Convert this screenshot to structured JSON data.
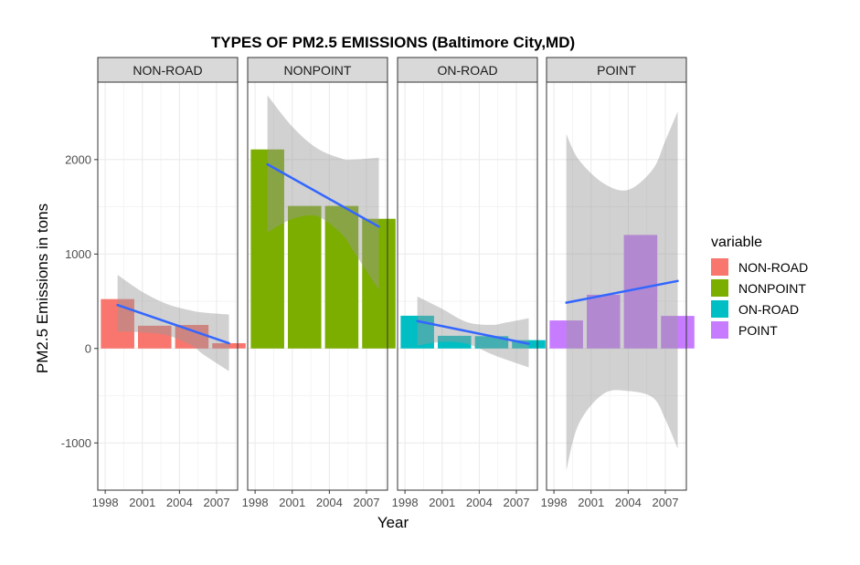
{
  "chart_data": {
    "type": "bar",
    "title": "TYPES OF PM2.5 EMISSIONS (Baltimore City,MD)",
    "xlabel": "Year",
    "ylabel": "PM2.5 Emissions in tons",
    "x_ticks": [
      1998,
      2001,
      2004,
      2007
    ],
    "y_ticks": [
      -1000,
      0,
      1000,
      2000
    ],
    "xlim": [
      1997.4,
      2008.7
    ],
    "ylim": [
      -1500,
      2820
    ],
    "grid": true,
    "legend_title": "variable",
    "legend_position": "right",
    "categories": [
      1999,
      2002,
      2005,
      2008
    ],
    "series": [
      {
        "name": "NON-ROAD",
        "color": "#F8766D",
        "values": [
          522.94,
          240.85,
          248.93,
          55.82
        ],
        "trend": {
          "start": 460,
          "end": 55
        },
        "band": [
          [
            1999,
            180,
            780
          ],
          [
            2001,
            170,
            600
          ],
          [
            2003,
            140,
            470
          ],
          [
            2005,
            30,
            400
          ],
          [
            2006,
            -70,
            380
          ],
          [
            2008,
            -240,
            360
          ]
        ]
      },
      {
        "name": "NONPOINT",
        "color": "#7CAE00",
        "values": [
          2107.63,
          1509.5,
          1509.5,
          1373.21
        ],
        "trend": {
          "start": 1950,
          "end": 1290
        },
        "band": [
          [
            1999,
            1230,
            2680
          ],
          [
            2001,
            1370,
            2350
          ],
          [
            2003,
            1400,
            2120
          ],
          [
            2005,
            1210,
            2010
          ],
          [
            2006,
            1020,
            2000
          ],
          [
            2008,
            620,
            2020
          ]
        ]
      },
      {
        "name": "ON-ROAD",
        "color": "#00BFC4",
        "values": [
          346.82,
          134.31,
          130.43,
          88.28
        ],
        "trend": {
          "start": 290,
          "end": 50
        },
        "band": [
          [
            1999,
            30,
            550
          ],
          [
            2001,
            70,
            420
          ],
          [
            2003,
            50,
            280
          ],
          [
            2005,
            -60,
            250
          ],
          [
            2006,
            -110,
            270
          ],
          [
            2008,
            -200,
            320
          ]
        ]
      },
      {
        "name": "POINT",
        "color": "#C77CFF",
        "values": [
          296.8,
          569.26,
          1202.49,
          344.98
        ],
        "trend": {
          "start": 485,
          "end": 715
        },
        "band": [
          [
            1999,
            -1290,
            2270
          ],
          [
            2000,
            -800,
            2000
          ],
          [
            2002,
            -480,
            1750
          ],
          [
            2004,
            -450,
            1680
          ],
          [
            2006,
            -520,
            1900
          ],
          [
            2007,
            -750,
            2200
          ],
          [
            2008,
            -1060,
            2510
          ]
        ]
      }
    ]
  }
}
